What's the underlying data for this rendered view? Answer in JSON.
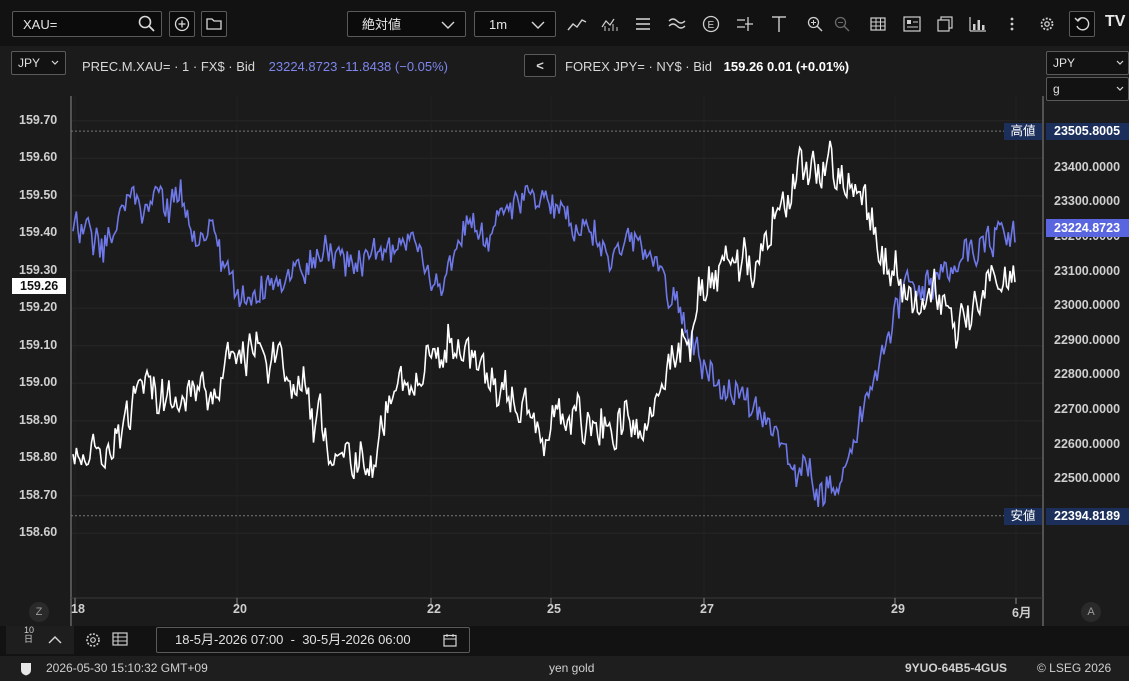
{
  "toolbar": {
    "symbol_value": "XAU=",
    "mode_select": "絶対値",
    "interval_select": "1m",
    "tv_logo": "TV"
  },
  "axis_selects": {
    "left_currency": "JPY",
    "right_currency": "JPY",
    "right_unit": "g"
  },
  "legend": {
    "series1_name": "PREC.M.XAU= · 1 · FX$ · Bid",
    "series1_values": "23224.8723 -11.8438 (−0.05%)",
    "series2_name": "FOREX JPY= · NY$ · Bid",
    "series2_values": "159.26 0.01 (+0.01%)",
    "collapse_label": "<"
  },
  "left_axis": {
    "ticks": [
      "159.70",
      "159.60",
      "159.50",
      "159.40",
      "159.30",
      "159.20",
      "159.10",
      "159.00",
      "158.90",
      "158.80",
      "158.70",
      "158.60"
    ],
    "current": "159.26"
  },
  "right_axis": {
    "ticks": [
      "23400.0000",
      "23300.0000",
      "23200.0000",
      "23100.0000",
      "23000.0000",
      "22900.0000",
      "22800.0000",
      "22700.0000",
      "22600.0000",
      "22500.0000"
    ],
    "current": "23224.8723",
    "high_label": "高値",
    "high_value": "23505.8005",
    "low_label": "安値",
    "low_value": "22394.8189"
  },
  "x_axis": {
    "ticks": [
      "18",
      "20",
      "22",
      "25",
      "27",
      "29",
      "6月"
    ],
    "left_button": "Z",
    "right_button": "A"
  },
  "bottom": {
    "period_label": "10\n日",
    "date_range": "18-5月-2026 07:00  -  30-5月-2026 06:00"
  },
  "status": {
    "timestamp": "2026-05-30 15:10:32 GMT+09",
    "chart_name": "yen gold",
    "code": "9YUO-64B5-4GUS",
    "copyright": "© LSEG 2026"
  },
  "colors": {
    "gold_series": "#6e78e8",
    "jpy_series": "#ffffff",
    "background": "#1b1b1b",
    "label_bg": "#1c2f5a"
  },
  "chart_data": {
    "type": "line",
    "x": [
      "05-18",
      "05-19",
      "05-20",
      "05-21",
      "05-22",
      "05-25",
      "05-26",
      "05-27",
      "05-28",
      "05-29",
      "05-30"
    ],
    "series": [
      {
        "name": "PREC.M.XAU= · 1 · FX$ · Bid",
        "axis": "right",
        "values": [
          23220,
          23310,
          23040,
          23160,
          23130,
          23330,
          23140,
          22750,
          22450,
          23100,
          23224.8723
        ]
      },
      {
        "name": "FOREX JPY= · NY$ · Bid",
        "axis": "left",
        "values": [
          158.78,
          158.95,
          159.08,
          158.82,
          159.11,
          158.88,
          158.92,
          159.3,
          159.58,
          159.22,
          159.26
        ]
      }
    ],
    "right_ylim": [
      22290,
      23590
    ],
    "left_ylim": [
      158.55,
      159.75
    ],
    "right_high": 23505.8005,
    "right_low": 22394.8189,
    "grid": true
  }
}
